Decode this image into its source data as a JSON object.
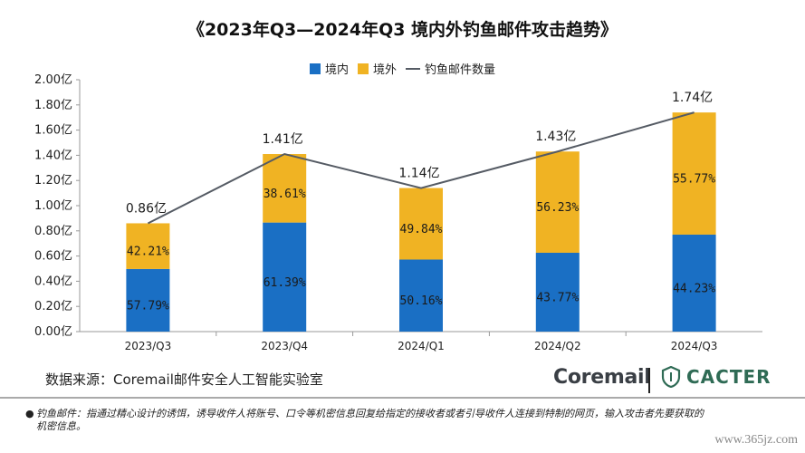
{
  "title": "《2023年Q3—2024年Q3 境内外钓鱼邮件攻击趋势》",
  "source": "数据来源：Coremail邮件安全人工智能实验室",
  "logos": {
    "coremail": "Coremail",
    "cacter": "CACTER"
  },
  "footnote": "钓鱼邮件：指通过精心设计的诱饵，诱导收件人将账号、口令等机密信息回复给指定的接收者或者引导收件人连接到特制的网页，输入攻击者先要获取的机密信息。",
  "watermark": "www.365jz.com",
  "colors": {
    "domestic": "#1a6fc4",
    "foreign": "#f0b323",
    "line": "#555b64",
    "logo_green": "#2f6b55"
  },
  "chart_data": {
    "type": "bar",
    "stacked": true,
    "categories": [
      "2023/Q3",
      "2023/Q4",
      "2024/Q1",
      "2024/Q2",
      "2024/Q3"
    ],
    "yticks": [
      "0.00亿",
      "0.20亿",
      "0.40亿",
      "0.60亿",
      "0.80亿",
      "1.00亿",
      "1.20亿",
      "1.40亿",
      "1.60亿",
      "1.80亿",
      "2.00亿"
    ],
    "ylim": [
      0,
      2.0
    ],
    "legend_position": "top-center",
    "grid": false,
    "series": [
      {
        "name": "境内",
        "values": [
          0.497,
          0.866,
          0.572,
          0.626,
          0.77
        ],
        "labels": [
          "57.79%",
          "61.39%",
          "50.16%",
          "43.77%",
          "44.23%"
        ]
      },
      {
        "name": "境外",
        "values": [
          0.363,
          0.544,
          0.568,
          0.804,
          0.97
        ],
        "labels": [
          "42.21%",
          "38.61%",
          "49.84%",
          "56.23%",
          "55.77%"
        ]
      }
    ],
    "line": {
      "name": "钓鱼邮件数量",
      "values": [
        0.86,
        1.41,
        1.14,
        1.43,
        1.74
      ],
      "labels": [
        "0.86亿",
        "1.41亿",
        "1.14亿",
        "1.43亿",
        "1.74亿"
      ]
    }
  }
}
